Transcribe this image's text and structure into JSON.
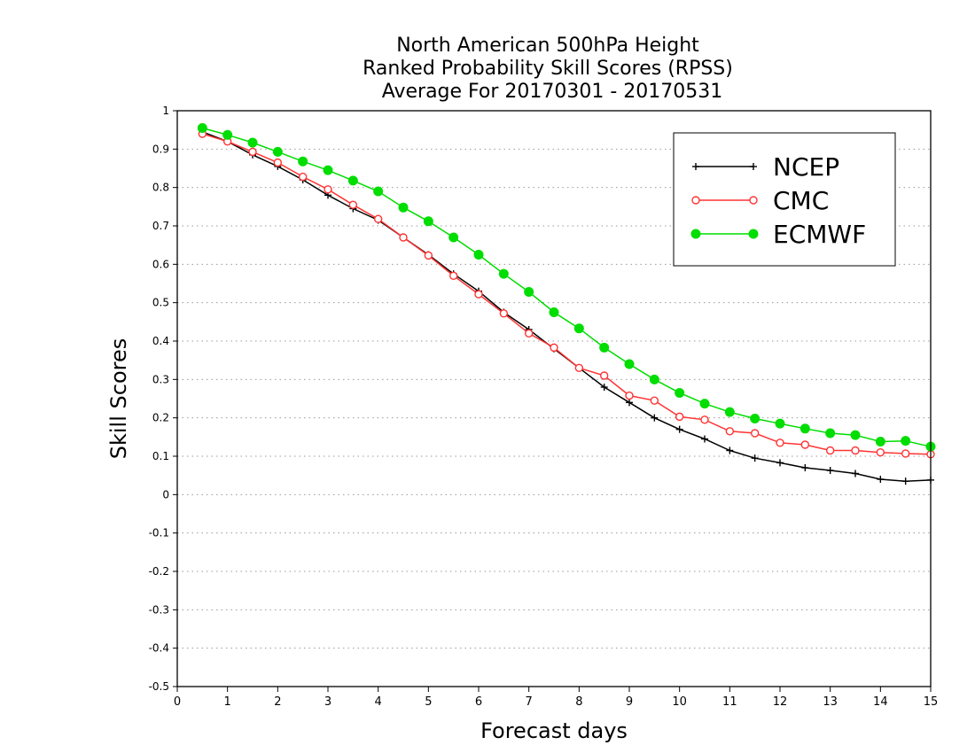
{
  "chart_data": {
    "type": "line",
    "title": [
      "North American 500hPa Height",
      "Ranked Probability Skill Scores (RPSS)",
      "Average For 20170301 - 20170531"
    ],
    "xlabel": "Forecast days",
    "ylabel": "Skill Scores",
    "xlim": [
      0,
      15
    ],
    "ylim": [
      -0.5,
      1
    ],
    "x_ticks": [
      "0",
      "1",
      "2",
      "3",
      "4",
      "5",
      "6",
      "7",
      "8",
      "9",
      "10",
      "11",
      "12",
      "13",
      "14",
      "15"
    ],
    "y_ticks": [
      "-0.5",
      "-0.4",
      "-0.3",
      "-0.2",
      "-0.1",
      "0",
      "0.1",
      "0.2",
      "0.3",
      "0.4",
      "0.5",
      "0.6",
      "0.7",
      "0.8",
      "0.9",
      "1"
    ],
    "grid": "horizontal dotted",
    "legend": "top-right",
    "x": [
      0.5,
      1,
      1.5,
      2,
      2.5,
      3,
      3.5,
      4,
      4.5,
      5,
      5.5,
      6,
      6.5,
      7,
      7.5,
      8,
      8.5,
      9,
      9.5,
      10,
      10.5,
      11,
      11.5,
      12,
      12.5,
      13,
      13.5,
      14,
      14.5,
      15
    ],
    "series": [
      {
        "name": "NCEP",
        "color": "#000000",
        "marker": "plus",
        "values": [
          0.945,
          0.92,
          0.885,
          0.855,
          0.82,
          0.78,
          0.745,
          0.715,
          0.67,
          0.625,
          0.575,
          0.53,
          0.475,
          0.43,
          0.38,
          0.33,
          0.28,
          0.24,
          0.2,
          0.17,
          0.145,
          0.115,
          0.095,
          0.083,
          0.07,
          0.063,
          0.055,
          0.04,
          0.035,
          0.038
        ]
      },
      {
        "name": "CMC",
        "color": "#ff3333",
        "marker": "open-circle",
        "values": [
          0.94,
          0.92,
          0.893,
          0.865,
          0.828,
          0.795,
          0.755,
          0.718,
          0.67,
          0.623,
          0.57,
          0.522,
          0.472,
          0.42,
          0.383,
          0.33,
          0.31,
          0.258,
          0.245,
          0.203,
          0.195,
          0.165,
          0.16,
          0.135,
          0.13,
          0.115,
          0.115,
          0.11,
          0.107,
          0.105
        ]
      },
      {
        "name": "ECMWF",
        "color": "#00dd00",
        "marker": "filled-circle",
        "values": [
          0.955,
          0.937,
          0.917,
          0.893,
          0.868,
          0.845,
          0.818,
          0.79,
          0.748,
          0.712,
          0.67,
          0.625,
          0.575,
          0.528,
          0.475,
          0.433,
          0.383,
          0.34,
          0.3,
          0.265,
          0.237,
          0.215,
          0.198,
          0.185,
          0.172,
          0.16,
          0.155,
          0.138,
          0.14,
          0.125
        ]
      }
    ]
  }
}
